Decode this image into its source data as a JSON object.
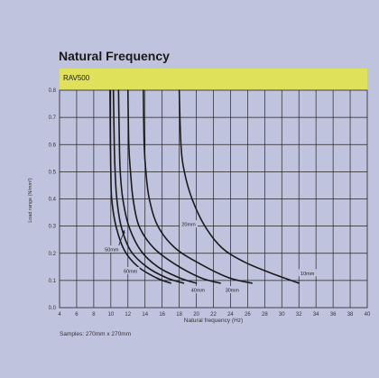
{
  "chart_data": {
    "type": "line",
    "title": "Natural Frequency",
    "band_label": "RAV500",
    "xlabel": "Natural frequency (Hz)",
    "ylabel": "Load range (N/mm²)",
    "note": "Samples: 270mm x 270mm",
    "xlim": [
      4,
      40
    ],
    "ylim": [
      0,
      0.8
    ],
    "xticks": [
      4,
      6,
      8,
      10,
      12,
      14,
      16,
      18,
      20,
      22,
      24,
      26,
      28,
      30,
      32,
      34,
      36,
      38,
      40
    ],
    "yticks": [
      0.0,
      0.1,
      0.2,
      0.3,
      0.4,
      0.5,
      0.6,
      0.7,
      0.8
    ],
    "ytick_labels": [
      "0.0",
      "0.1",
      "0.2",
      "0.3",
      "0.4",
      "0.5",
      "0.6",
      "0.7",
      "0.8"
    ],
    "grid": true,
    "series": [
      {
        "name": "10mm",
        "x": [
          18.0,
          18.2,
          18.6,
          19.5,
          21.0,
          23.0,
          25.5,
          28.5,
          32.0
        ],
        "y": [
          0.8,
          0.6,
          0.5,
          0.4,
          0.3,
          0.22,
          0.17,
          0.13,
          0.09
        ]
      },
      {
        "name": "20mm",
        "x": [
          13.8,
          13.9,
          14.1,
          14.5,
          15.5,
          17.5,
          20.5,
          23.8,
          26.5
        ],
        "y": [
          0.8,
          0.6,
          0.5,
          0.4,
          0.3,
          0.22,
          0.16,
          0.11,
          0.09
        ]
      },
      {
        "name": "30mm",
        "x": [
          12.0,
          12.1,
          12.3,
          12.6,
          13.3,
          15.0,
          17.5,
          20.5,
          22.8
        ],
        "y": [
          0.8,
          0.6,
          0.5,
          0.4,
          0.3,
          0.22,
          0.16,
          0.11,
          0.09
        ]
      },
      {
        "name": "40mm",
        "x": [
          10.9,
          11.0,
          11.1,
          11.4,
          12.1,
          13.5,
          15.5,
          18.0,
          20.0
        ],
        "y": [
          0.8,
          0.6,
          0.5,
          0.4,
          0.3,
          0.21,
          0.15,
          0.11,
          0.09
        ]
      },
      {
        "name": "50mm",
        "x": [
          10.3,
          10.4,
          10.5,
          10.7,
          11.2,
          12.3,
          14.2,
          16.5,
          18.5
        ],
        "y": [
          0.8,
          0.6,
          0.5,
          0.4,
          0.3,
          0.21,
          0.15,
          0.11,
          0.09
        ]
      },
      {
        "name": "60mm",
        "x": [
          9.9,
          9.95,
          10.0,
          10.1,
          10.6,
          11.6,
          13.2,
          15.3,
          17.0
        ],
        "y": [
          0.8,
          0.6,
          0.5,
          0.4,
          0.3,
          0.21,
          0.15,
          0.11,
          0.09
        ]
      }
    ],
    "annotations": [
      {
        "text": "10mm",
        "x": 33.0,
        "y": 0.125
      },
      {
        "text": "20mm",
        "x": 19.1,
        "y": 0.305
      },
      {
        "text": "30mm",
        "x": 24.2,
        "y": 0.063
      },
      {
        "text": "40mm",
        "x": 20.2,
        "y": 0.063
      },
      {
        "text": "50mm",
        "x": 10.1,
        "y": 0.213
      },
      {
        "text": "60mm",
        "x": 12.3,
        "y": 0.133
      }
    ],
    "arrow": {
      "from_label": "50mm",
      "to": {
        "x": 11.6,
        "y": 0.285
      }
    },
    "colors": {
      "background": "#c0c3de",
      "band": "#dfe15a",
      "line": "#1a1a1a",
      "grid": "#222222"
    }
  }
}
